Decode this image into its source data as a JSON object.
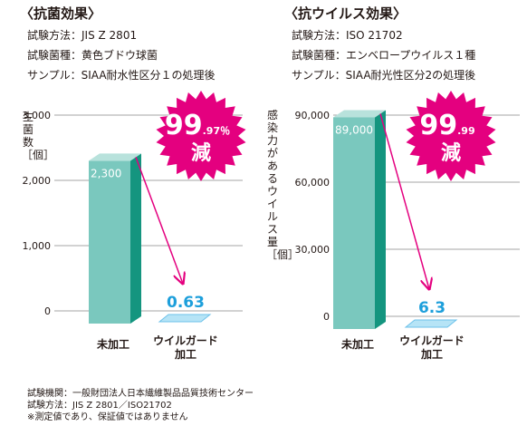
{
  "colors": {
    "bar_front": "#7ac8be",
    "bar_side": "#14957f",
    "bar_top": "#b8e2dc",
    "tile_top": "#b6e4f6",
    "tile_front": "#6dc2ea",
    "value_blue": "#1d9fdb",
    "arrow": "#e4007f",
    "badge": "#e4007f",
    "grid": "#888888",
    "text": "#231815"
  },
  "panels": [
    {
      "title": "〈抗菌効果〉",
      "info": [
        "試験方法：JIS Z 2801",
        "試験菌種：黄色ブドウ球菌",
        "サンプル：SIAA耐水性区分１の処理後"
      ],
      "ylabel": "生菌数［個］",
      "badge": {
        "main": "99",
        "small": ".97％",
        "bottom": "減"
      }
    },
    {
      "title": "〈抗ウイルス効果〉",
      "info": [
        "試験方法：ISO 21702",
        "試験菌種：エンベロープウイルス１種",
        "サンプル：SIAA耐光性区分2の処理後"
      ],
      "ylabel": "感染力があるウイルス量［個］",
      "badge": {
        "main": "99",
        "small": ".99",
        "bottom": "減"
      }
    }
  ],
  "chart_data": [
    {
      "type": "bar",
      "categories": [
        "未加工",
        "ウイルガード加工"
      ],
      "values": [
        2300,
        0.63
      ],
      "value_labels": [
        "2,300",
        "0.63"
      ],
      "ylabel": "生菌数［個］",
      "ylim": [
        0,
        3000
      ],
      "yticks": [
        0,
        1000,
        2000,
        3000
      ],
      "ytick_labels": [
        "0",
        "1,000",
        "2,000",
        "3,000"
      ],
      "grid": true,
      "annotation": "99.97％ 減"
    },
    {
      "type": "bar",
      "categories": [
        "未加工",
        "ウイルガード加工"
      ],
      "values": [
        89000,
        6.3
      ],
      "value_labels": [
        "89,000",
        "6.3"
      ],
      "ylabel": "感染力があるウイルス量［個］",
      "ylim": [
        0,
        90000
      ],
      "yticks": [
        0,
        30000,
        60000,
        90000
      ],
      "ytick_labels": [
        "0",
        "30,000",
        "60,000",
        "90,000"
      ],
      "grid": true,
      "annotation": "99.99 減"
    }
  ],
  "notes": [
    "試験機関：一般財団法人日本繊維製品品質技術センター",
    "試験方法：JIS Z 2801／ISO21702",
    "※測定値であり、保証値ではありません"
  ]
}
